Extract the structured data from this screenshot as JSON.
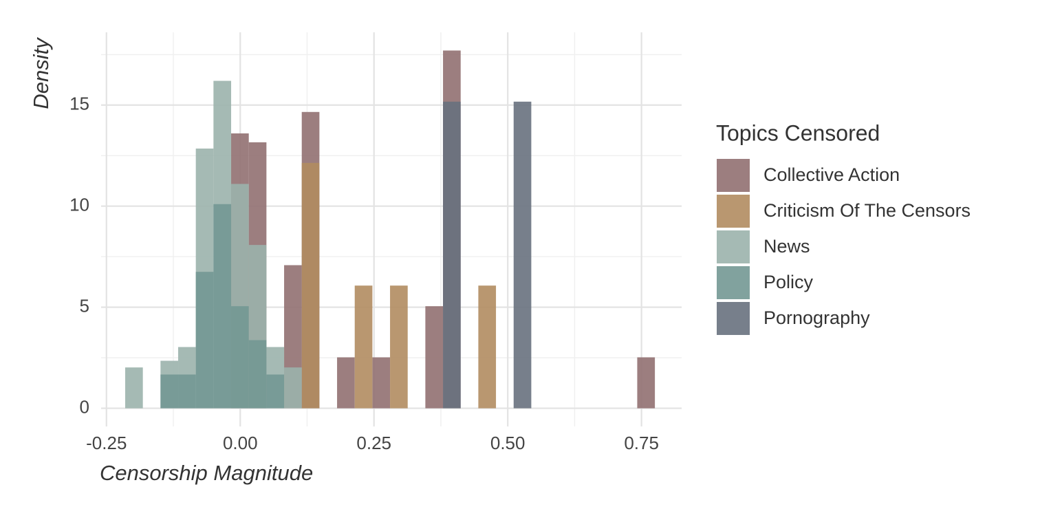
{
  "chart_data": {
    "type": "histogram",
    "x_label": "Censorship Magnitude",
    "y_label": "Density",
    "legend_title": "Topics Censored",
    "xlim": [
      -0.26,
      0.825
    ],
    "ylim": [
      -0.9,
      18.6
    ],
    "xticks": [
      {
        "value": -0.25,
        "label": "-0.25"
      },
      {
        "value": 0,
        "label": "0.00"
      },
      {
        "value": 0.25,
        "label": "0.25"
      },
      {
        "value": 0.5,
        "label": "0.50"
      },
      {
        "value": 0.75,
        "label": "0.75"
      }
    ],
    "yticks": [
      0,
      5,
      10,
      15
    ],
    "xminor": [
      -0.125,
      0.125,
      0.375,
      0.625
    ],
    "yminor": [
      2.5,
      7.5,
      12.5,
      17.5
    ],
    "grid": true,
    "legend": "right",
    "opacity": 0.9,
    "bins": [
      -0.215,
      -0.182,
      -0.149,
      -0.116,
      -0.083,
      -0.05,
      -0.017,
      0.016,
      0.049,
      0.082,
      0.115,
      0.148,
      0.181,
      0.214,
      0.247,
      0.28,
      0.313,
      0.346,
      0.379,
      0.412,
      0.445,
      0.478,
      0.511,
      0.544,
      0.577,
      0.61,
      0.643,
      0.676,
      0.709,
      0.742,
      0.775
    ],
    "series": [
      {
        "name": "Collective Action",
        "color": "#917071",
        "values": [
          0,
          0,
          0,
          0,
          0,
          0,
          13.6,
          13.16,
          0,
          7.08,
          14.66,
          0,
          2.52,
          0,
          2.52,
          0,
          0,
          5.05,
          17.7,
          0,
          0,
          0,
          0,
          0,
          0,
          0,
          0,
          0,
          0,
          2.52
        ]
      },
      {
        "name": "Criticism Of The Censors",
        "color": "#b18c61",
        "values": [
          0,
          0,
          0,
          0,
          0,
          0,
          0,
          0,
          0,
          0,
          12.14,
          0,
          0,
          6.07,
          0,
          6.07,
          0,
          0,
          0,
          0,
          6.07,
          0,
          0,
          0,
          0,
          0,
          0,
          0,
          0,
          0
        ]
      },
      {
        "name": "News",
        "color": "#9bb3ac",
        "values": [
          2.02,
          0,
          2.35,
          3.03,
          12.85,
          16.2,
          11.1,
          8.08,
          3.03,
          2.02,
          0,
          0,
          0,
          0,
          0,
          0,
          0,
          0,
          0,
          0,
          0,
          0,
          0,
          0,
          0,
          0,
          0,
          0,
          0,
          0
        ]
      },
      {
        "name": "Policy",
        "color": "#739893",
        "values": [
          0,
          0,
          1.67,
          1.67,
          6.75,
          10.1,
          5.05,
          3.37,
          1.67,
          0,
          0,
          0,
          0,
          0,
          0,
          0,
          0,
          0,
          0,
          0,
          0,
          0,
          0,
          0,
          0,
          0,
          0,
          0,
          0,
          0
        ]
      },
      {
        "name": "Pornography",
        "color": "#68717e",
        "values": [
          0,
          0,
          0,
          0,
          0,
          0,
          0,
          0,
          0,
          0,
          0,
          0,
          0,
          0,
          0,
          0,
          0,
          0,
          15.17,
          0,
          0,
          0,
          15.17,
          0,
          0,
          0,
          0,
          0,
          0,
          0
        ]
      }
    ]
  }
}
